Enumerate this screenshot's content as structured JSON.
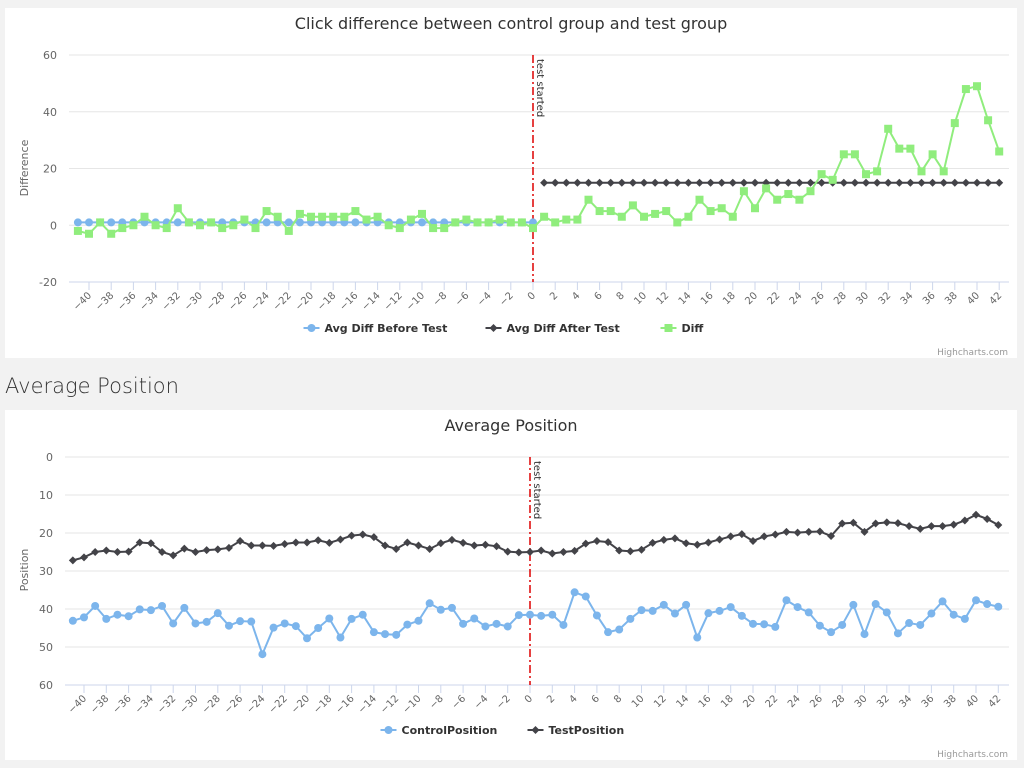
{
  "section_heading": "Average Position",
  "credits": "Highcharts.com",
  "colors": {
    "blue": "#7cb5ec",
    "black": "#434348",
    "green": "#90ed7d",
    "plotline": "#dd0000",
    "grid": "#e6e6e6"
  },
  "chart_data": [
    {
      "type": "line",
      "title": "Click difference between control group and test group",
      "ylabel": "Difference",
      "xlim": [
        -41,
        42
      ],
      "ylim": [
        -20,
        60
      ],
      "y_reversed": false,
      "yticks": [
        -20,
        0,
        20,
        40,
        60
      ],
      "xticks": [
        -40,
        -38,
        -36,
        -34,
        -32,
        -30,
        -28,
        -26,
        -24,
        -22,
        -20,
        -18,
        -16,
        -14,
        -12,
        -10,
        -8,
        -6,
        -4,
        -2,
        0,
        2,
        4,
        6,
        8,
        10,
        12,
        14,
        16,
        18,
        20,
        22,
        24,
        26,
        28,
        30,
        32,
        34,
        36,
        38,
        40,
        42
      ],
      "grid": true,
      "legend": "bottom-center",
      "plotline": {
        "x": 0,
        "label": "test started"
      },
      "series": [
        {
          "name": "Avg Diff Before Test",
          "color": "#7cb5ec",
          "marker": "circle",
          "x_start": -41,
          "values": [
            1,
            1,
            1,
            1,
            1,
            1,
            1,
            1,
            1,
            1,
            1,
            1,
            1,
            1,
            1,
            1,
            1,
            1,
            1,
            1,
            1,
            1,
            1,
            1,
            1,
            1,
            1,
            1,
            1,
            1,
            1,
            1,
            1,
            1,
            1,
            1,
            1,
            1,
            1,
            1,
            1,
            1
          ]
        },
        {
          "name": "Avg Diff After Test",
          "color": "#434348",
          "marker": "diamond",
          "x_start": 1,
          "values": [
            15,
            15,
            15,
            15,
            15,
            15,
            15,
            15,
            15,
            15,
            15,
            15,
            15,
            15,
            15,
            15,
            15,
            15,
            15,
            15,
            15,
            15,
            15,
            15,
            15,
            15,
            15,
            15,
            15,
            15,
            15,
            15,
            15,
            15,
            15,
            15,
            15,
            15,
            15,
            15,
            15,
            15
          ]
        },
        {
          "name": "Diff",
          "color": "#90ed7d",
          "marker": "square",
          "x_start": -41,
          "values": [
            -2,
            -3,
            1,
            -3,
            -1,
            0,
            3,
            0,
            -1,
            6,
            1,
            0,
            1,
            -1,
            0,
            2,
            -1,
            5,
            3,
            -2,
            4,
            3,
            3,
            3,
            3,
            5,
            2,
            3,
            0,
            -1,
            2,
            4,
            -1,
            -1,
            1,
            2,
            1,
            1,
            2,
            1,
            1,
            -1,
            3,
            1,
            2,
            2,
            9,
            5,
            5,
            3,
            7,
            3,
            4,
            5,
            1,
            3,
            9,
            5,
            6,
            3,
            12,
            6,
            13,
            9,
            11,
            9,
            12,
            18,
            16,
            25,
            25,
            18,
            19,
            34,
            27,
            27,
            19,
            25,
            19,
            36,
            48,
            49,
            37,
            26
          ]
        }
      ]
    },
    {
      "type": "line",
      "title": "Average Position",
      "ylabel": "Position",
      "xlim": [
        -41,
        42
      ],
      "ylim": [
        0,
        60
      ],
      "y_reversed": true,
      "yticks": [
        0,
        10,
        20,
        30,
        40,
        50,
        60
      ],
      "xticks": [
        -40,
        -38,
        -36,
        -34,
        -32,
        -30,
        -28,
        -26,
        -24,
        -22,
        -20,
        -18,
        -16,
        -14,
        -12,
        -10,
        -8,
        -6,
        -4,
        -2,
        0,
        2,
        4,
        6,
        8,
        10,
        12,
        14,
        16,
        18,
        20,
        22,
        24,
        26,
        28,
        30,
        32,
        34,
        36,
        38,
        40,
        42
      ],
      "grid": true,
      "legend": "bottom-center",
      "plotline": {
        "x": 0,
        "label": "test started"
      },
      "series": [
        {
          "name": "ControlPosition",
          "color": "#7cb5ec",
          "marker": "circle",
          "x_start": -41,
          "values": [
            43.1,
            42.2,
            39.2,
            42.6,
            41.5,
            41.9,
            40.1,
            40.3,
            39.2,
            43.8,
            39.7,
            43.8,
            43.4,
            41.1,
            44.4,
            43.2,
            43.3,
            51.9,
            44.9,
            43.8,
            44.5,
            47.7,
            45,
            42.5,
            47.5,
            42.6,
            41.5,
            46.1,
            46.6,
            46.8,
            44.1,
            43.1,
            38.5,
            40.2,
            39.7,
            43.9,
            42.5,
            44.6,
            43.9,
            44.6,
            41.6,
            41.5,
            41.8,
            41.5,
            44.2,
            35.6,
            36.7,
            41.7,
            46.1,
            45.4,
            42.6,
            40.3,
            40.5,
            38.9,
            41.2,
            38.9,
            47.5,
            41.1,
            40.5,
            39.5,
            41.8,
            43.9,
            44,
            44.7,
            37.7,
            39.5,
            40.9,
            44.4,
            46.1,
            44.2,
            38.9,
            46.6,
            38.7,
            40.9,
            46.4,
            43.7,
            44.2,
            41.2,
            38,
            41.5,
            42.6,
            37.7,
            38.7,
            39.4
          ]
        },
        {
          "name": "TestPosition",
          "color": "#434348",
          "marker": "diamond",
          "x_start": -41,
          "values": [
            27.2,
            26.4,
            25,
            24.6,
            25,
            24.9,
            22.5,
            22.7,
            25,
            25.9,
            24.1,
            25,
            24.5,
            24.3,
            23.9,
            22.1,
            23.3,
            23.3,
            23.4,
            22.9,
            22.5,
            22.5,
            21.9,
            22.6,
            21.7,
            20.7,
            20.4,
            21.1,
            23.3,
            24.2,
            22.5,
            23.3,
            24.2,
            22.7,
            21.8,
            22.6,
            23.3,
            23.1,
            23.5,
            24.9,
            25.1,
            25,
            24.6,
            25.4,
            25,
            24.7,
            22.8,
            22.1,
            22.4,
            24.6,
            24.8,
            24.4,
            22.6,
            21.8,
            21.4,
            22.7,
            23.1,
            22.5,
            21.7,
            20.9,
            20.3,
            22.1,
            20.9,
            20.4,
            19.7,
            19.9,
            19.7,
            19.6,
            20.8,
            17.5,
            17.3,
            19.7,
            17.5,
            17.2,
            17.4,
            18.2,
            18.9,
            18.2,
            18.2,
            17.8,
            16.7,
            15.2,
            16.3,
            17.9
          ]
        }
      ]
    }
  ]
}
